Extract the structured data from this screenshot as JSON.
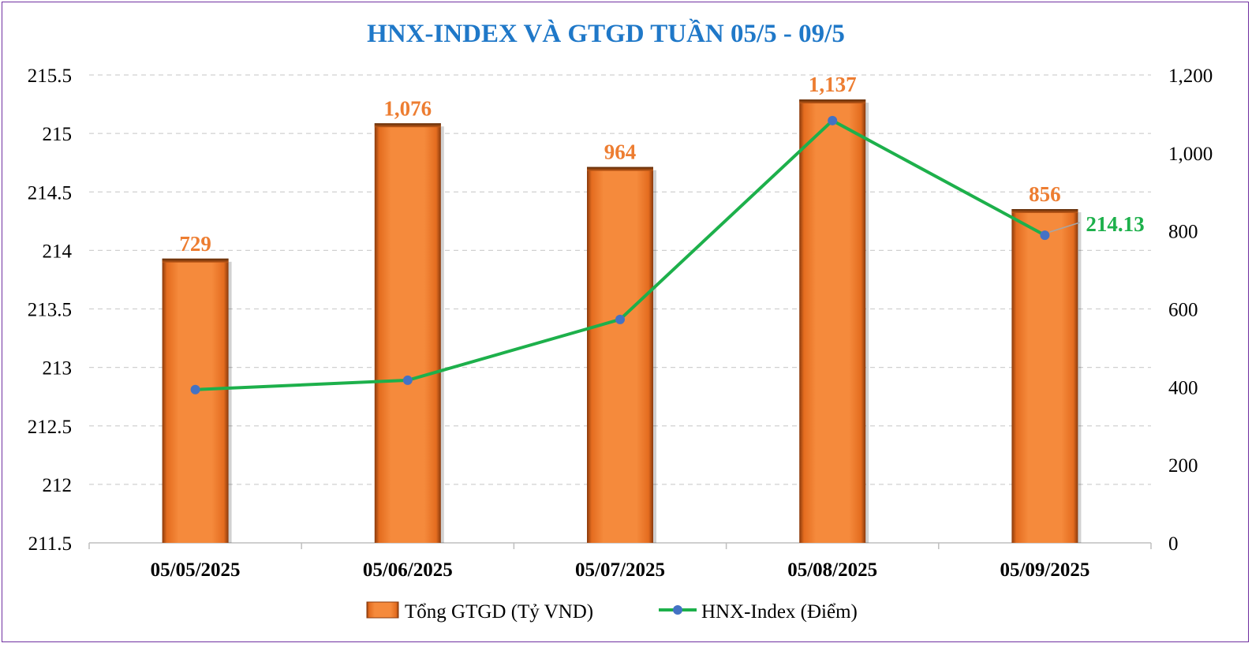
{
  "chart_data": {
    "type": "bar",
    "title": "HNX-INDEX VÀ GTGD TUẦN 05/5 - 09/5",
    "categories": [
      "05/05/2025",
      "05/06/2025",
      "05/07/2025",
      "05/08/2025",
      "05/09/2025"
    ],
    "series": [
      {
        "name": "Tổng GTGD (Tỷ VND)",
        "type": "bar",
        "axis": "right",
        "values": [
          729,
          1076,
          964,
          1137,
          856
        ],
        "labels": [
          "729",
          "1,076",
          "964",
          "1,137",
          "856"
        ],
        "color": "#f58232"
      },
      {
        "name": "HNX-Index (Điểm)",
        "type": "line",
        "axis": "left",
        "values": [
          212.81,
          212.89,
          213.41,
          215.11,
          214.13
        ],
        "last_label": "214.13",
        "color": "#1db04b",
        "marker_color": "#4472c4"
      }
    ],
    "left_axis": {
      "min": 211.5,
      "max": 215.5,
      "step": 0.5,
      "tick_labels": [
        "211.5",
        "212",
        "212.5",
        "213",
        "213.5",
        "214",
        "214.5",
        "215",
        "215.5"
      ]
    },
    "right_axis": {
      "min": 0,
      "max": 1200,
      "step": 200,
      "tick_labels": [
        "0",
        "200",
        "400",
        "600",
        "800",
        "1,000",
        "1,200"
      ]
    },
    "grid": true,
    "legend_position": "bottom",
    "colors": {
      "title": "#1f78c8",
      "bar": "#f58232",
      "bar_label": "#ed7d31",
      "line": "#1db04b",
      "marker": "#4472c4",
      "line_label": "#1db04b",
      "grid": "#d0d0d0",
      "frame": "#7030a0"
    }
  }
}
